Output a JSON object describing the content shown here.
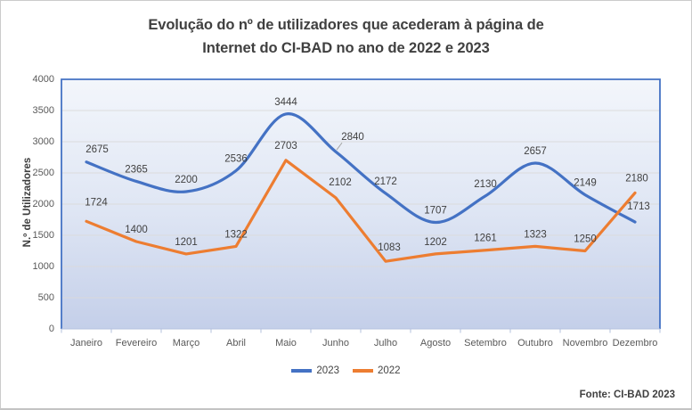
{
  "chart_data": {
    "type": "line",
    "title": "Evolução do nº de utilizadores que acederam à página de Internet do CI-BAD no ano de 2022 e 2023",
    "title_lines": [
      "Evolução do nº de utilizadores que acederam à página de",
      "Internet do CI-BAD no ano de 2022 e 2023"
    ],
    "ylabel": "N.º de Utilizadores",
    "xlabel": "",
    "categories": [
      "Janeiro",
      "Fevereiro",
      "Março",
      "Abril",
      "Maio",
      "Junho",
      "Julho",
      "Agosto",
      "Setembro",
      "Outubro",
      "Novembro",
      "Dezembro"
    ],
    "series": [
      {
        "name": "2023",
        "color": "#4472C4",
        "smooth": true,
        "values": [
          2675,
          2365,
          2200,
          2536,
          3444,
          2840,
          2172,
          1707,
          2130,
          2657,
          2149,
          1713
        ]
      },
      {
        "name": "2022",
        "color": "#ED7D31",
        "smooth": false,
        "values": [
          1724,
          1400,
          1201,
          1322,
          2703,
          2102,
          1083,
          1202,
          1261,
          1323,
          1250,
          2180
        ]
      }
    ],
    "ylim": [
      0,
      4000
    ],
    "yticks": [
      0,
      500,
      1000,
      1500,
      2000,
      2500,
      3000,
      3500,
      4000
    ],
    "grid": true,
    "data_labels": true,
    "legend_position": "bottom",
    "source_note": "Fonte: CI-BAD  2023",
    "colors": {
      "plot_border": "#4472C4",
      "gridline": "#D9D9D9",
      "axis_line": "#B3C0DE",
      "axis_text": "#595959",
      "label_text": "#404040",
      "plot_bg_top": "#F3F6FB",
      "plot_bg_bottom": "#C4CFE9"
    }
  }
}
